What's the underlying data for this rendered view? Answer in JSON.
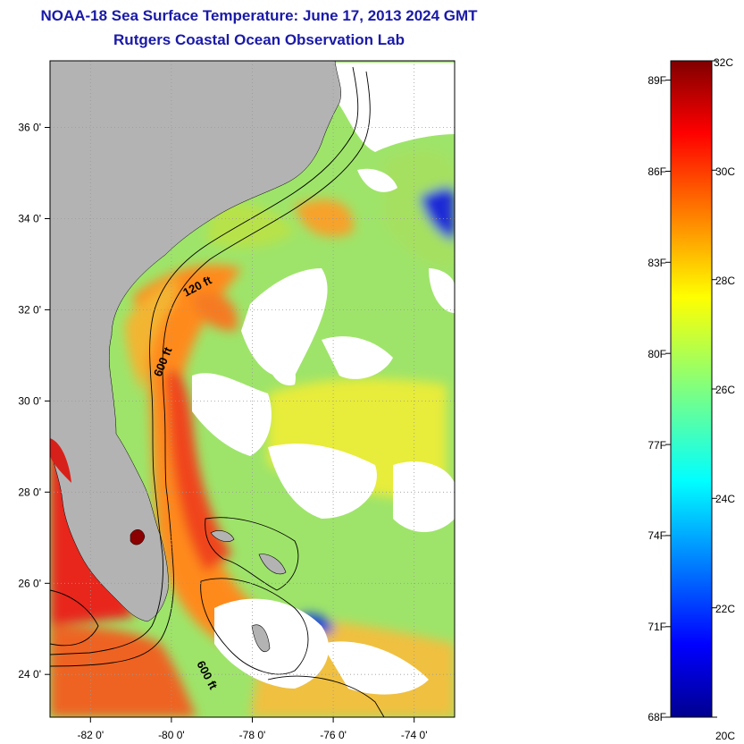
{
  "header": {
    "title": "NOAA-18 Sea Surface Temperature:  June 17, 2013 2024 GMT",
    "subtitle": "Rutgers Coastal Ocean Observation Lab"
  },
  "map": {
    "lon_range": [
      -83,
      -73
    ],
    "lat_range": [
      23,
      37
    ],
    "lon_ticks": [
      "-82 0'",
      "-80 0'",
      "-78 0'",
      "-76 0'",
      "-74 0'"
    ],
    "lat_ticks": [
      "24 0'",
      "26 0'",
      "28 0'",
      "30 0'",
      "32 0'",
      "34 0'",
      "36 0'"
    ],
    "contour_labels": [
      "120 ft",
      "600 ft",
      "600 ft"
    ],
    "colors": {
      "land": "#b3b3b3",
      "cloud": "#ffffff",
      "contour": "#000000",
      "gridline": "#9a9a9a"
    }
  },
  "colorbar": {
    "fahrenheit_labels": [
      "89F",
      "86F",
      "83F",
      "80F",
      "77F",
      "74F",
      "71F",
      "68F"
    ],
    "celsius_labels": [
      "32C",
      "30C",
      "28C",
      "26C",
      "24C",
      "22C",
      "20C"
    ],
    "range_c": [
      20,
      32
    ],
    "colormap": "jet"
  }
}
